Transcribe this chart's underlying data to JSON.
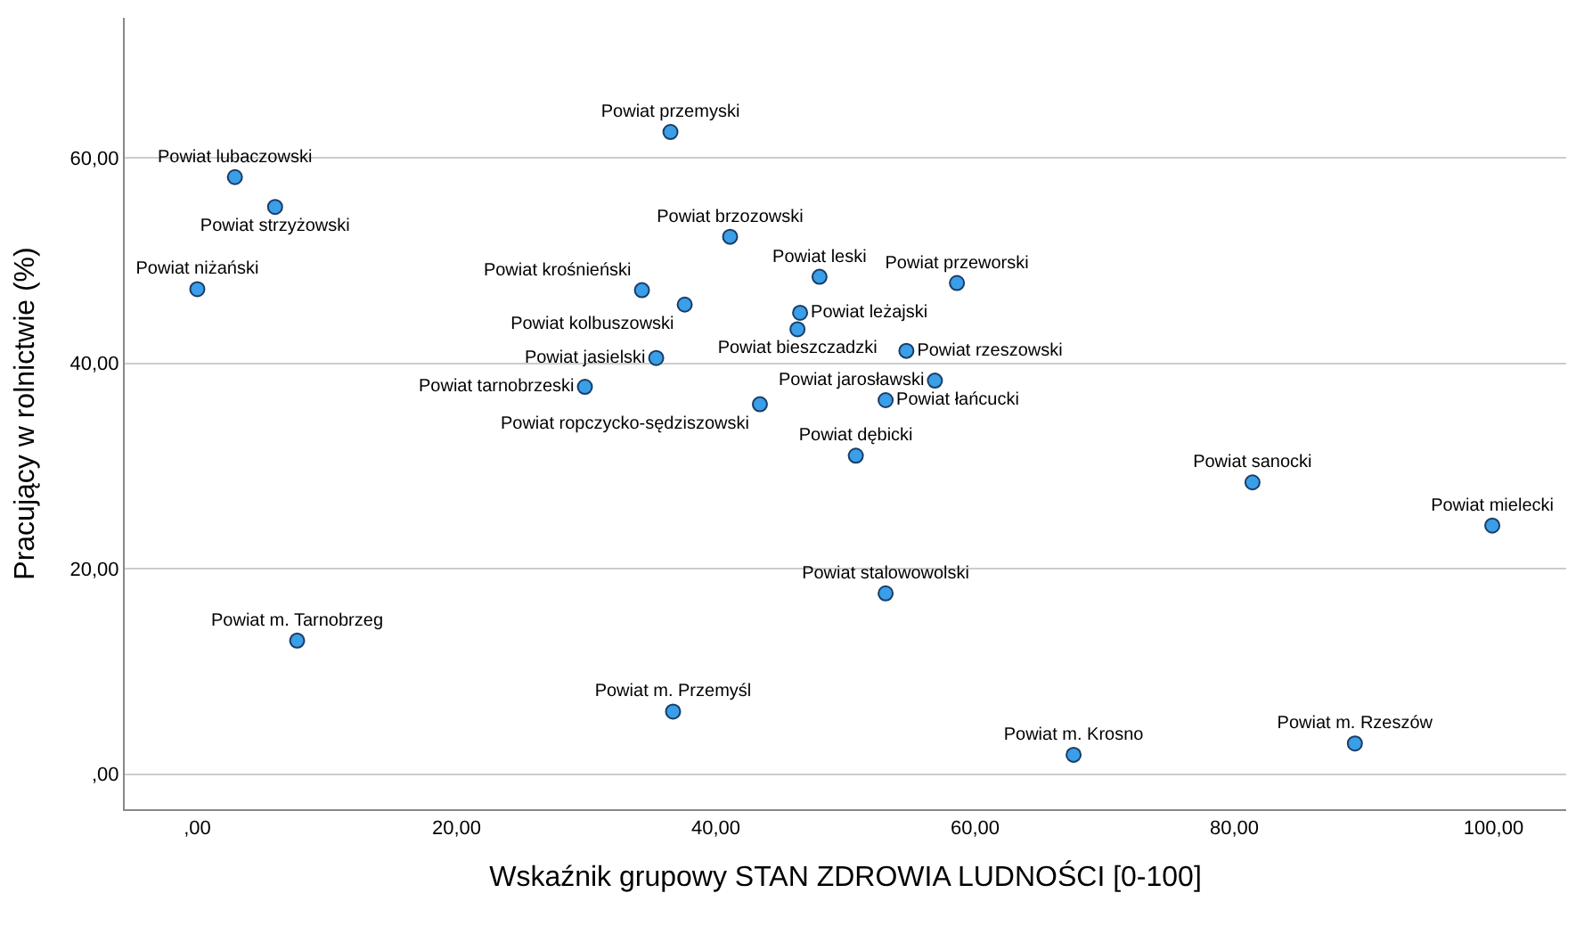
{
  "chart_data": {
    "type": "scatter",
    "xlabel": "Wskaźnik grupowy STAN ZDROWIA LUDNOŚCI [0-100]",
    "ylabel": "Pracujący w rolnictwie (%)",
    "x": [
      36.5,
      2.9,
      6.0,
      0.0,
      41.1,
      48.0,
      58.6,
      34.3,
      37.6,
      46.5,
      46.3,
      54.7,
      35.4,
      29.9,
      56.9,
      53.1,
      43.4,
      50.8,
      81.4,
      99.9,
      53.1,
      7.7,
      36.7,
      67.6,
      89.3
    ],
    "values": [
      62.5,
      58.1,
      55.2,
      47.2,
      52.3,
      48.4,
      47.8,
      47.1,
      45.7,
      44.9,
      43.3,
      41.2,
      40.5,
      37.7,
      38.3,
      36.4,
      36.0,
      31.0,
      28.4,
      24.2,
      17.6,
      13.0,
      6.1,
      1.9,
      3.0
    ],
    "value_labels": [
      "Powiat przemyski",
      "Powiat lubaczowski",
      "Powiat strzyżowski",
      "Powiat niżański",
      "Powiat brzozowski",
      "Powiat leski",
      "Powiat przeworski",
      "Powiat krośnieński",
      "Powiat kolbuszowski",
      "Powiat leżajski",
      "Powiat bieszczadzki",
      "Powiat rzeszowski",
      "Powiat jasielski",
      "Powiat tarnobrzeski",
      "Powiat jarosławski",
      "Powiat łańcucki",
      "Powiat ropczycko-sędziszowski",
      "Powiat dębicki",
      "Powiat sanocki",
      "Powiat mielecki",
      "Powiat stalowowolski",
      "Powiat m. Tarnobrzeg",
      "Powiat m. Przemyśl",
      "Powiat m. Krosno",
      "Powiat m. Rzeszów"
    ],
    "color": "#3a9ee8",
    "marker": "circle",
    "xlim": [
      -5.6,
      105.6
    ],
    "xticks": [
      {
        "value": 0,
        "label": ",00"
      },
      {
        "value": 20,
        "label": "20,00"
      },
      {
        "value": 40,
        "label": "40,00"
      },
      {
        "value": 60,
        "label": "60,00"
      },
      {
        "value": 80,
        "label": "80,00"
      },
      {
        "value": 100,
        "label": "100,00"
      }
    ],
    "ylim": [
      -3.4,
      73.6
    ],
    "yticks": [
      {
        "value": 0,
        "label": ",00"
      },
      {
        "value": 20,
        "label": "20,00"
      },
      {
        "value": 40,
        "label": "40,00"
      },
      {
        "value": 60,
        "label": "60,00"
      }
    ],
    "grid": "y"
  }
}
